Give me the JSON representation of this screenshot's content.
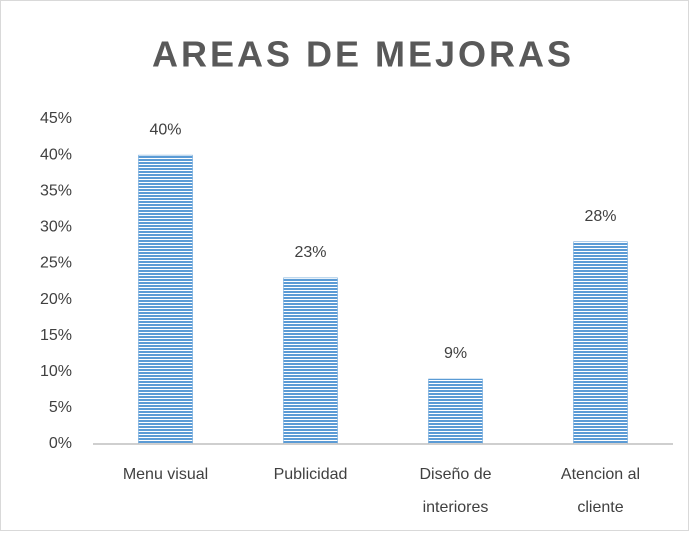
{
  "chart_data": {
    "type": "bar",
    "title": "AREAS DE MEJORAS",
    "categories": [
      "Menu visual",
      "Publicidad",
      "Diseño de interiores",
      "Atencion al cliente"
    ],
    "values": [
      40,
      23,
      9,
      28
    ],
    "value_labels": [
      "40%",
      "23%",
      "9%",
      "28%"
    ],
    "color": "#5b9bd5",
    "ylim": [
      0,
      45
    ],
    "yticks": [
      {
        "value": 0,
        "label": "0%"
      },
      {
        "value": 5,
        "label": "5%"
      },
      {
        "value": 10,
        "label": "10%"
      },
      {
        "value": 15,
        "label": "15%"
      },
      {
        "value": 20,
        "label": "20%"
      },
      {
        "value": 25,
        "label": "25%"
      },
      {
        "value": 30,
        "label": "30%"
      },
      {
        "value": 35,
        "label": "35%"
      },
      {
        "value": 40,
        "label": "40%"
      },
      {
        "value": 45,
        "label": "45%"
      }
    ],
    "grid": false
  }
}
